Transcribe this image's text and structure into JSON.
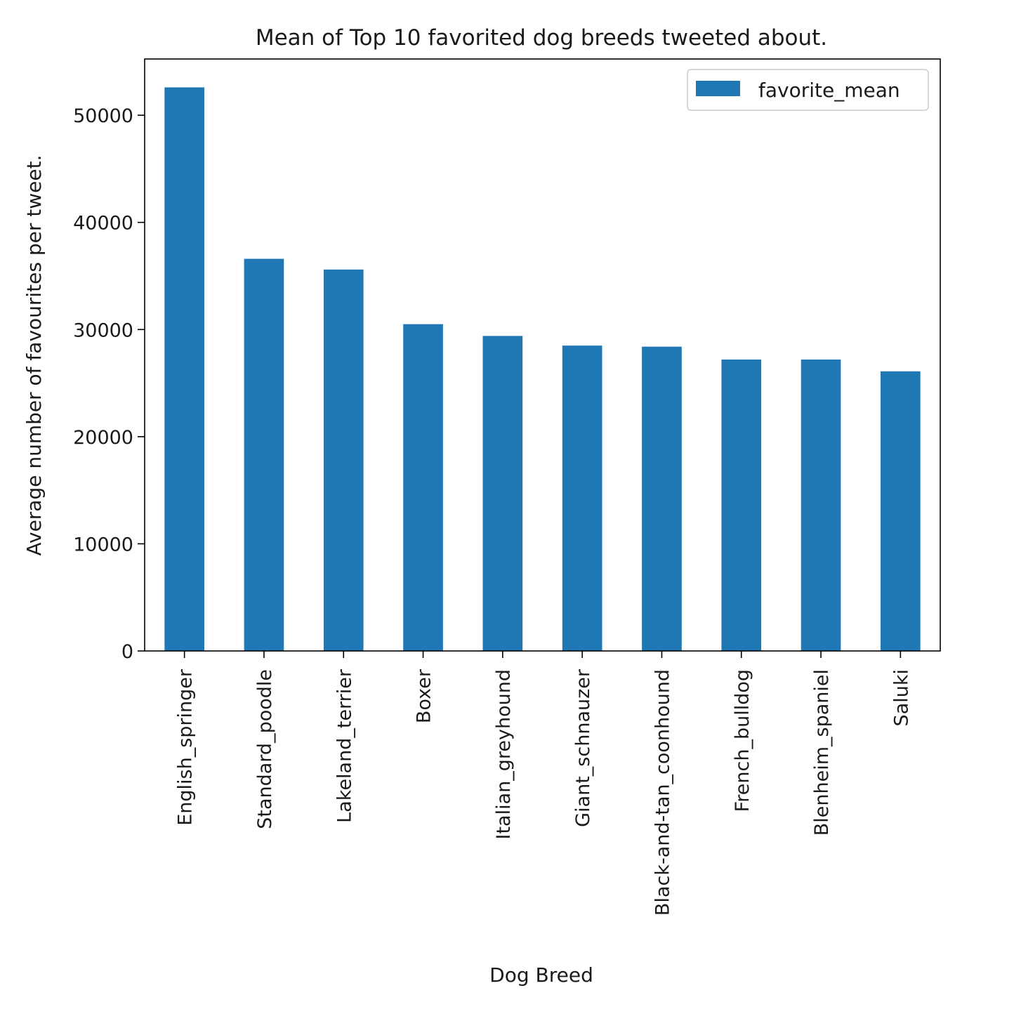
{
  "chart_data": {
    "type": "bar",
    "title": "Mean of Top 10 favorited dog breeds tweeted about.",
    "xlabel": "Dog Breed",
    "ylabel": "Average number of favourites per tweet.",
    "categories": [
      "English_springer",
      "Standard_poodle",
      "Lakeland_terrier",
      "Boxer",
      "Italian_greyhound",
      "Giant_schnauzer",
      "Black-and-tan_coonhound",
      "French_bulldog",
      "Blenheim_spaniel",
      "Saluki"
    ],
    "series": [
      {
        "name": "favorite_mean",
        "color": "#1f77b4",
        "values": [
          52600,
          36600,
          35600,
          30500,
          29400,
          28500,
          28400,
          27200,
          27200,
          26100
        ]
      }
    ],
    "ylim": [
      0,
      55250
    ],
    "yticks": [
      0,
      10000,
      20000,
      30000,
      40000,
      50000
    ],
    "grid": false,
    "legend": "top-right"
  }
}
